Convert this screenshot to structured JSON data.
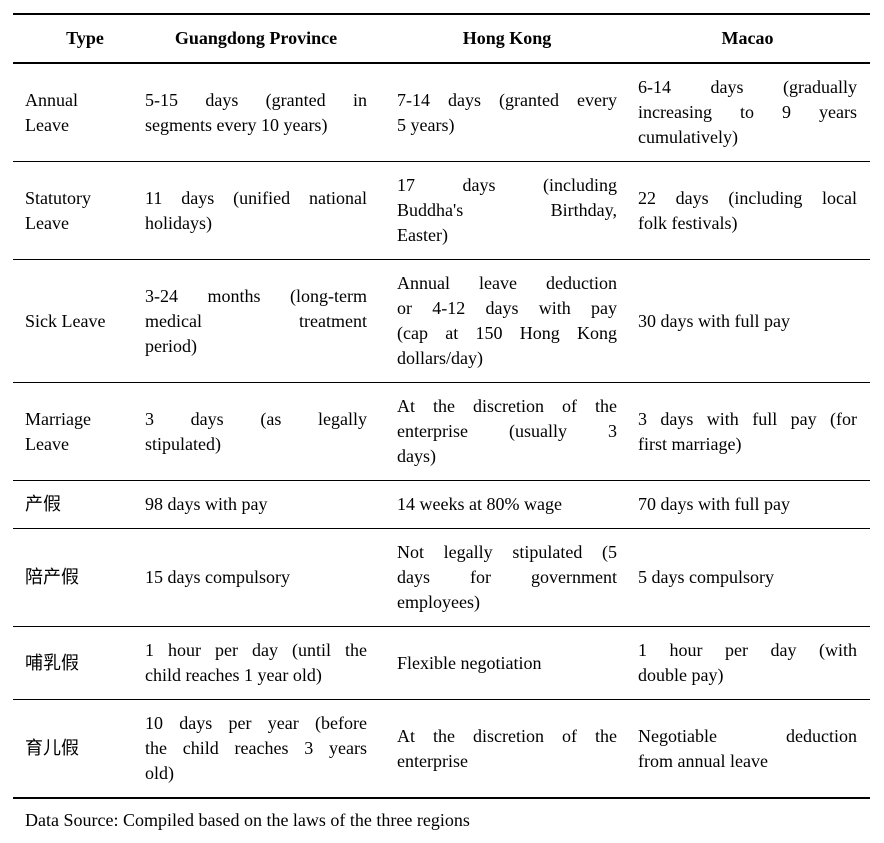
{
  "page": {
    "background": "#ffffff",
    "text_color": "#000000",
    "rule_color": "#000000"
  },
  "table": {
    "headers": [
      "Type",
      "Guangdong Province",
      "Hong Kong",
      "Macao"
    ],
    "rows": [
      {
        "cells": [
          [
            "Annual",
            "Leave"
          ],
          [
            "5-15 days (granted in",
            "segments every 10 years)"
          ],
          [
            "7-14 days (granted every",
            "5 years)"
          ],
          [
            "6-14 days (gradually",
            "increasing to 9 years",
            "cumulatively)"
          ]
        ]
      },
      {
        "cells": [
          [
            "Statutory",
            "Leave"
          ],
          [
            "11 days (unified national",
            "holidays)"
          ],
          [
            "17 days (including",
            "Buddha's Birthday,",
            "Easter)"
          ],
          [
            "22 days (including local",
            "folk festivals)"
          ]
        ]
      },
      {
        "cells": [
          [
            "Sick Leave"
          ],
          [
            "3-24 months (long-term",
            "medical treatment",
            "period)"
          ],
          [
            "Annual leave deduction",
            "or 4-12 days with pay",
            "(cap at 150 Hong Kong",
            "dollars/day)"
          ],
          [
            "30 days with full pay"
          ]
        ]
      },
      {
        "cells": [
          [
            "Marriage",
            "Leave"
          ],
          [
            "3 days (as legally",
            "stipulated)"
          ],
          [
            "At the discretion of the",
            "enterprise (usually 3",
            "days)"
          ],
          [
            "3 days with full pay (for",
            "first marriage)"
          ]
        ]
      },
      {
        "cells": [
          [
            "产假"
          ],
          [
            "98 days with pay"
          ],
          [
            "14 weeks at 80% wage"
          ],
          [
            "70 days with full pay"
          ]
        ]
      },
      {
        "cells": [
          [
            "陪产假"
          ],
          [
            "15 days compulsory"
          ],
          [
            "Not legally stipulated (5",
            "days for government",
            "employees)"
          ],
          [
            "5 days compulsory"
          ]
        ]
      },
      {
        "cells": [
          [
            "哺乳假"
          ],
          [
            "1 hour per day (until the",
            "child reaches 1 year old)"
          ],
          [
            "Flexible negotiation"
          ],
          [
            "1 hour per day (with",
            "double pay)"
          ]
        ]
      },
      {
        "cells": [
          [
            "育儿假"
          ],
          [
            "10 days per year (before",
            "the child reaches 3 years",
            "old)"
          ],
          [
            "At the discretion of the",
            "enterprise"
          ],
          [
            "Negotiable deduction",
            "from annual leave"
          ]
        ]
      }
    ],
    "source_note": "Data Source: Compiled based on the laws of the three regions"
  }
}
